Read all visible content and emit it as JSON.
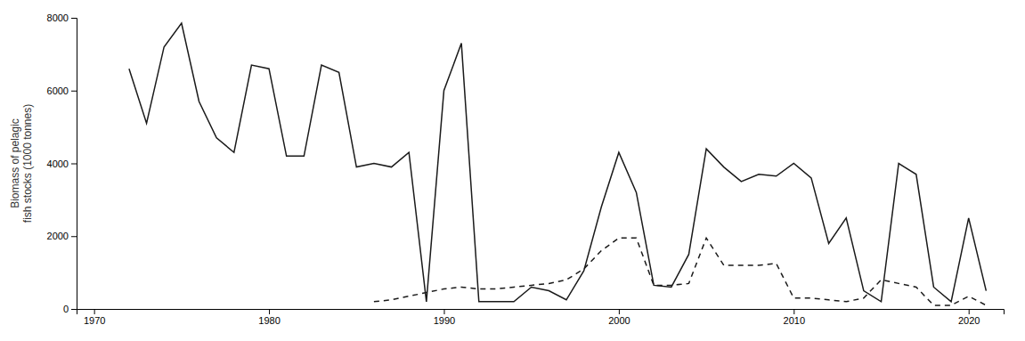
{
  "chart_data": {
    "type": "line",
    "ylabel": "Biomass of pelagic\nfish stocks (1000 tonnes)",
    "xlim": [
      1969,
      2022
    ],
    "xticks": [
      1970,
      1980,
      1990,
      2000,
      2010,
      2020
    ],
    "ylim": [
      0,
      8000
    ],
    "yticks": [
      0,
      2000,
      4000,
      6000,
      8000
    ],
    "grid": false,
    "series": [
      {
        "color": "#1a1a1a",
        "line_style": "solid",
        "x": [
          1972,
          1973,
          1974,
          1975,
          1976,
          1977,
          1978,
          1979,
          1980,
          1981,
          1982,
          1983,
          1984,
          1985,
          1986,
          1987,
          1988,
          1989,
          1990,
          1991,
          1992,
          1993,
          1994,
          1995,
          1996,
          1997,
          1998,
          1999,
          2000,
          2001,
          2002,
          2003,
          2004,
          2005,
          2006,
          2007,
          2008,
          2009,
          2010,
          2011,
          2012,
          2013,
          2014,
          2015,
          2016,
          2017,
          2018,
          2019,
          2020,
          2021
        ],
        "values": [
          6600,
          5100,
          7200,
          7850,
          5700,
          4700,
          4300,
          6700,
          6600,
          4200,
          4200,
          6700,
          6500,
          3900,
          4000,
          3900,
          4300,
          200,
          6000,
          7300,
          200,
          200,
          200,
          600,
          500,
          250,
          1050,
          2800,
          4300,
          3200,
          650,
          600,
          1500,
          4400,
          3900,
          3500,
          3700,
          3650,
          4000,
          3600,
          1800,
          2500,
          500,
          200,
          4000,
          3700,
          600,
          200,
          2500,
          500
        ]
      },
      {
        "color": "#1a1a1a",
        "line_style": "dashed",
        "x": [
          1986,
          1987,
          1988,
          1989,
          1990,
          1991,
          1992,
          1993,
          1994,
          1995,
          1996,
          1997,
          1998,
          1999,
          2000,
          2001,
          2002,
          2003,
          2004,
          2005,
          2006,
          2007,
          2008,
          2009,
          2010,
          2011,
          2012,
          2013,
          2014,
          2015,
          2016,
          2017,
          2018,
          2019,
          2020,
          2021
        ],
        "values": [
          200,
          250,
          350,
          450,
          550,
          600,
          550,
          550,
          600,
          650,
          700,
          800,
          1100,
          1600,
          1950,
          1950,
          650,
          650,
          700,
          1950,
          1200,
          1200,
          1200,
          1250,
          300,
          300,
          250,
          200,
          300,
          800,
          700,
          600,
          100,
          100,
          350,
          100
        ]
      }
    ]
  }
}
